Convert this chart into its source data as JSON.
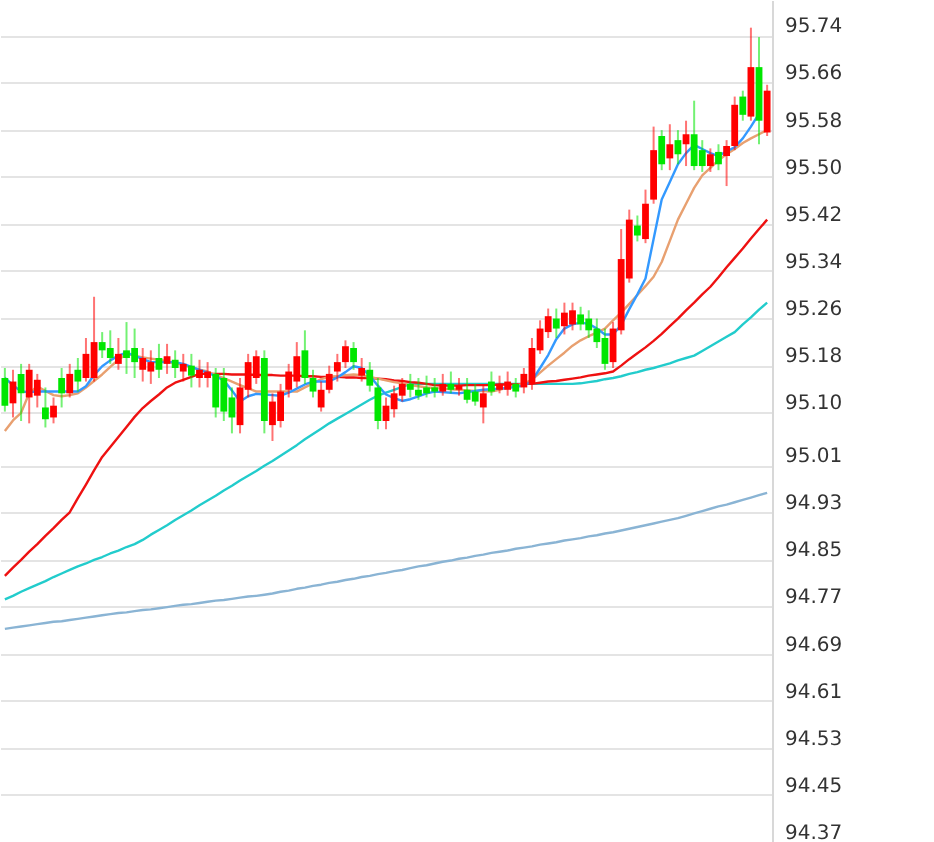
{
  "chart_data": {
    "type": "candlestick",
    "categories": [
      null,
      null,
      null,
      null,
      null,
      null,
      null,
      null,
      null,
      null,
      null,
      null,
      null,
      null,
      null,
      null,
      null,
      null,
      null,
      null,
      null,
      null,
      null,
      null,
      null,
      null,
      null,
      null,
      null,
      null,
      null,
      null,
      null,
      null,
      null,
      null,
      null,
      null,
      null,
      null,
      null,
      null,
      null,
      null,
      null,
      null,
      null,
      null,
      null,
      null,
      null,
      null,
      null,
      null,
      null,
      null,
      null,
      null,
      null,
      null,
      null,
      null,
      null,
      null,
      null,
      null,
      null,
      null,
      null,
      null,
      null,
      null,
      null,
      null,
      null,
      null,
      null,
      null,
      null,
      null,
      null,
      null,
      null,
      null,
      null,
      null,
      null,
      null,
      null,
      null,
      null,
      null,
      null,
      null,
      null
    ],
    "ohlc": [
      [
        95.158,
        95.175,
        95.101,
        95.111
      ],
      [
        95.115,
        95.172,
        95.091,
        95.152
      ],
      [
        95.165,
        95.182,
        95.085,
        95.132
      ],
      [
        95.125,
        95.182,
        95.081,
        95.172
      ],
      [
        95.128,
        95.165,
        95.108,
        95.155
      ],
      [
        95.108,
        95.142,
        95.074,
        95.088
      ],
      [
        95.091,
        95.125,
        95.081,
        95.111
      ],
      [
        95.158,
        95.175,
        95.108,
        95.132
      ],
      [
        95.132,
        95.182,
        95.125,
        95.165
      ],
      [
        95.172,
        95.192,
        95.135,
        95.152
      ],
      [
        95.158,
        95.226,
        95.152,
        95.199
      ],
      [
        95.158,
        95.296,
        95.152,
        95.219
      ],
      [
        95.219,
        95.236,
        95.192,
        95.205
      ],
      [
        95.209,
        95.239,
        95.182,
        95.192
      ],
      [
        95.182,
        95.226,
        95.172,
        95.199
      ],
      [
        95.205,
        95.253,
        95.165,
        95.192
      ],
      [
        95.209,
        95.242,
        95.158,
        95.185
      ],
      [
        95.172,
        95.209,
        95.152,
        95.192
      ],
      [
        95.169,
        95.205,
        95.148,
        95.185
      ],
      [
        95.192,
        95.216,
        95.158,
        95.172
      ],
      [
        95.182,
        95.216,
        95.165,
        95.195
      ],
      [
        95.189,
        95.205,
        95.158,
        95.175
      ],
      [
        95.169,
        95.199,
        95.152,
        95.182
      ],
      [
        95.179,
        95.199,
        95.142,
        95.162
      ],
      [
        95.158,
        95.189,
        95.142,
        95.172
      ],
      [
        95.158,
        95.185,
        95.142,
        95.169
      ],
      [
        95.165,
        95.175,
        95.091,
        95.108
      ],
      [
        95.158,
        95.175,
        95.085,
        95.101
      ],
      [
        95.125,
        95.142,
        95.064,
        95.091
      ],
      [
        95.078,
        95.158,
        95.064,
        95.142
      ],
      [
        95.138,
        95.199,
        95.125,
        95.185
      ],
      [
        95.158,
        95.205,
        95.148,
        95.195
      ],
      [
        95.192,
        95.205,
        95.064,
        95.085
      ],
      [
        95.078,
        95.132,
        95.051,
        95.118
      ],
      [
        95.085,
        95.148,
        95.074,
        95.135
      ],
      [
        95.138,
        95.182,
        95.125,
        95.169
      ],
      [
        95.152,
        95.219,
        95.142,
        95.195
      ],
      [
        95.205,
        95.239,
        95.148,
        95.158
      ],
      [
        95.158,
        95.172,
        95.125,
        95.135
      ],
      [
        95.108,
        95.152,
        95.101,
        95.138
      ],
      [
        95.138,
        95.179,
        95.132,
        95.165
      ],
      [
        95.169,
        95.199,
        95.152,
        95.185
      ],
      [
        95.185,
        95.222,
        95.175,
        95.212
      ],
      [
        95.209,
        95.219,
        95.172,
        95.185
      ],
      [
        95.162,
        95.192,
        95.152,
        95.175
      ],
      [
        95.172,
        95.185,
        95.135,
        95.145
      ],
      [
        95.142,
        95.158,
        95.071,
        95.085
      ],
      [
        95.085,
        95.125,
        95.071,
        95.111
      ],
      [
        95.105,
        95.145,
        95.091,
        95.132
      ],
      [
        95.128,
        95.158,
        95.118,
        95.148
      ],
      [
        95.148,
        95.165,
        95.125,
        95.138
      ],
      [
        95.138,
        95.158,
        95.121,
        95.128
      ],
      [
        95.142,
        95.162,
        95.125,
        95.132
      ],
      [
        95.142,
        95.158,
        95.125,
        95.135
      ],
      [
        95.135,
        95.165,
        95.128,
        95.148
      ],
      [
        95.148,
        95.169,
        95.132,
        95.138
      ],
      [
        95.138,
        95.158,
        95.128,
        95.145
      ],
      [
        95.138,
        95.158,
        95.115,
        95.121
      ],
      [
        95.135,
        95.148,
        95.111,
        95.118
      ],
      [
        95.108,
        95.145,
        95.081,
        95.132
      ],
      [
        95.152,
        95.169,
        95.128,
        95.135
      ],
      [
        95.138,
        95.162,
        95.132,
        95.148
      ],
      [
        95.138,
        95.169,
        95.128,
        95.152
      ],
      [
        95.148,
        95.158,
        95.125,
        95.135
      ],
      [
        95.142,
        95.175,
        95.132,
        95.165
      ],
      [
        95.148,
        95.226,
        95.138,
        95.209
      ],
      [
        95.205,
        95.256,
        95.199,
        95.242
      ],
      [
        95.236,
        95.276,
        95.226,
        95.263
      ],
      [
        95.259,
        95.276,
        95.226,
        95.242
      ],
      [
        95.246,
        95.286,
        95.232,
        95.269
      ],
      [
        95.249,
        95.286,
        95.239,
        95.273
      ],
      [
        95.266,
        95.279,
        95.239,
        95.249
      ],
      [
        95.259,
        95.273,
        95.226,
        95.239
      ],
      [
        95.242,
        95.259,
        95.209,
        95.219
      ],
      [
        95.226,
        95.242,
        95.172,
        95.182
      ],
      [
        95.185,
        95.253,
        95.175,
        95.242
      ],
      [
        95.239,
        95.411,
        95.232,
        95.36
      ],
      [
        95.327,
        95.444,
        95.32,
        95.427
      ],
      [
        95.417,
        95.434,
        95.39,
        95.4
      ],
      [
        95.394,
        95.478,
        95.387,
        95.454
      ],
      [
        95.461,
        95.585,
        95.454,
        95.545
      ],
      [
        95.569,
        95.579,
        95.511,
        95.521
      ],
      [
        95.531,
        95.589,
        95.511,
        95.555
      ],
      [
        95.562,
        95.579,
        95.521,
        95.538
      ],
      [
        95.555,
        95.595,
        95.518,
        95.572
      ],
      [
        95.572,
        95.629,
        95.511,
        95.518
      ],
      [
        95.545,
        95.562,
        95.508,
        95.518
      ],
      [
        95.518,
        95.548,
        95.508,
        95.538
      ],
      [
        95.542,
        95.555,
        95.511,
        95.521
      ],
      [
        95.535,
        95.562,
        95.484,
        95.552
      ],
      [
        95.552,
        95.636,
        95.545,
        95.622
      ],
      [
        95.636,
        95.646,
        95.595,
        95.605
      ],
      [
        95.602,
        95.753,
        95.595,
        95.686
      ],
      [
        95.686,
        95.737,
        95.555,
        95.595
      ],
      [
        95.575,
        95.656,
        95.569,
        95.646
      ]
    ],
    "colors": [
      "#00e600",
      "#ff0000",
      "#00e600",
      "#ff0000",
      "#ff0000",
      "#00e600",
      "#ff0000",
      "#00e600",
      "#ff0000",
      "#00e600",
      "#ff0000",
      "#ff0000",
      "#00e600",
      "#00e600",
      "#ff0000",
      "#00e600",
      "#00e600",
      "#ff0000",
      "#ff0000",
      "#00e600",
      "#ff0000",
      "#00e600",
      "#ff0000",
      "#00e600",
      "#ff0000",
      "#ff0000",
      "#00e600",
      "#00e600",
      "#00e600",
      "#ff0000",
      "#ff0000",
      "#ff0000",
      "#00e600",
      "#ff0000",
      "#ff0000",
      "#ff0000",
      "#ff0000",
      "#00e600",
      "#00e600",
      "#ff0000",
      "#ff0000",
      "#ff0000",
      "#ff0000",
      "#00e600",
      "#ff0000",
      "#00e600",
      "#00e600",
      "#ff0000",
      "#ff0000",
      "#ff0000",
      "#00e600",
      "#00e600",
      "#00e600",
      "#00e600",
      "#ff0000",
      "#00e600",
      "#ff0000",
      "#00e600",
      "#00e600",
      "#ff0000",
      "#00e600",
      "#ff0000",
      "#ff0000",
      "#00e600",
      "#ff0000",
      "#ff0000",
      "#ff0000",
      "#ff0000",
      "#00e600",
      "#ff0000",
      "#ff0000",
      "#00e600",
      "#00e600",
      "#00e600",
      "#00e600",
      "#ff0000",
      "#ff0000",
      "#ff0000",
      "#00e600",
      "#ff0000",
      "#ff0000",
      "#00e600",
      "#ff0000",
      "#00e600",
      "#ff0000",
      "#00e600",
      "#00e600",
      "#ff0000",
      "#00e600",
      "#ff0000",
      "#ff0000",
      "#00e600",
      "#ff0000",
      "#00e600",
      "#ff0000"
    ],
    "series": [
      {
        "type": "line",
        "color": "#8ab4d4",
        "values": [
          94.732,
          94.734,
          94.736,
          94.738,
          94.74,
          94.742,
          94.744,
          94.745,
          94.747,
          94.749,
          94.751,
          94.753,
          94.755,
          94.757,
          94.759,
          94.76,
          94.762,
          94.764,
          94.765,
          94.767,
          94.769,
          94.771,
          94.773,
          94.774,
          94.776,
          94.778,
          94.78,
          94.781,
          94.783,
          94.785,
          94.787,
          94.788,
          94.79,
          94.792,
          94.795,
          94.797,
          94.8,
          94.802,
          94.805,
          94.807,
          94.81,
          94.812,
          94.815,
          94.817,
          94.82,
          94.822,
          94.825,
          94.827,
          94.83,
          94.832,
          94.835,
          94.838,
          94.84,
          94.843,
          94.846,
          94.848,
          94.851,
          94.853,
          94.856,
          94.858,
          94.861,
          94.863,
          94.865,
          94.868,
          94.87,
          94.872,
          94.875,
          94.877,
          94.879,
          94.882,
          94.884,
          94.886,
          94.889,
          94.891,
          94.894,
          94.896,
          94.899,
          94.902,
          94.905,
          94.908,
          94.911,
          94.914,
          94.917,
          94.92,
          94.924,
          94.928,
          94.932,
          94.936,
          94.94,
          94.943,
          94.947,
          94.951,
          94.955,
          94.959,
          94.963
        ]
      },
      {
        "type": "line",
        "color": "#22cccc",
        "values": [
          94.782,
          94.788,
          94.795,
          94.801,
          94.807,
          94.813,
          94.82,
          94.826,
          94.832,
          94.838,
          94.843,
          94.849,
          94.854,
          94.86,
          94.865,
          94.871,
          94.876,
          94.883,
          94.892,
          94.9,
          94.908,
          94.917,
          94.925,
          94.933,
          94.942,
          94.95,
          94.958,
          94.967,
          94.975,
          94.984,
          94.992,
          95.0,
          95.009,
          95.017,
          95.026,
          95.035,
          95.044,
          95.054,
          95.063,
          95.072,
          95.081,
          95.089,
          95.097,
          95.105,
          95.113,
          95.121,
          95.128,
          95.133,
          95.138,
          95.143,
          95.148,
          95.148,
          95.148,
          95.148,
          95.148,
          95.148,
          95.148,
          95.148,
          95.148,
          95.148,
          95.148,
          95.148,
          95.148,
          95.148,
          95.148,
          95.148,
          95.148,
          95.148,
          95.148,
          95.148,
          95.148,
          95.149,
          95.151,
          95.153,
          95.156,
          95.158,
          95.161,
          95.165,
          95.168,
          95.172,
          95.175,
          95.179,
          95.183,
          95.188,
          95.192,
          95.196,
          95.204,
          95.212,
          95.22,
          95.228,
          95.236,
          95.249,
          95.261,
          95.274,
          95.286
        ]
      },
      {
        "type": "line",
        "color": "#ee1111",
        "values": [
          94.822,
          94.836,
          94.849,
          94.863,
          94.876,
          94.89,
          94.903,
          94.917,
          94.93,
          94.954,
          94.977,
          95.001,
          95.024,
          95.041,
          95.058,
          95.075,
          95.092,
          95.107,
          95.119,
          95.13,
          95.142,
          95.15,
          95.155,
          95.16,
          95.165,
          95.165,
          95.165,
          95.165,
          95.164,
          95.164,
          95.164,
          95.163,
          95.163,
          95.163,
          95.162,
          95.162,
          95.162,
          95.161,
          95.161,
          95.16,
          95.16,
          95.16,
          95.159,
          95.159,
          95.158,
          95.158,
          95.157,
          95.156,
          95.154,
          95.153,
          95.151,
          95.15,
          95.148,
          95.146,
          95.145,
          95.145,
          95.145,
          95.146,
          95.146,
          95.146,
          95.146,
          95.147,
          95.147,
          95.147,
          95.148,
          95.148,
          95.15,
          95.152,
          95.153,
          95.155,
          95.157,
          95.159,
          95.162,
          95.164,
          95.166,
          95.169,
          95.179,
          95.19,
          95.2,
          95.21,
          95.221,
          95.233,
          95.246,
          95.259,
          95.273,
          95.286,
          95.3,
          95.313,
          95.329,
          95.346,
          95.362,
          95.378,
          95.395,
          95.411,
          95.427
        ]
      },
      {
        "type": "line",
        "color": "#e8a070",
        "values": [
          95.068,
          95.086,
          95.099,
          95.132,
          95.144,
          95.136,
          95.129,
          95.127,
          95.129,
          95.132,
          95.142,
          95.153,
          95.164,
          95.177,
          95.189,
          95.199,
          95.196,
          95.193,
          95.191,
          95.189,
          95.186,
          95.183,
          95.18,
          95.176,
          95.172,
          95.169,
          95.163,
          95.158,
          95.152,
          95.146,
          95.141,
          95.135,
          95.135,
          95.135,
          95.135,
          95.135,
          95.135,
          95.142,
          95.149,
          95.156,
          95.16,
          95.161,
          95.163,
          95.164,
          95.163,
          95.16,
          95.157,
          95.154,
          95.151,
          95.149,
          95.146,
          95.144,
          95.142,
          95.141,
          95.14,
          95.139,
          95.138,
          95.137,
          95.136,
          95.136,
          95.135,
          95.138,
          95.142,
          95.145,
          95.149,
          95.155,
          95.167,
          95.179,
          95.19,
          95.201,
          95.213,
          95.222,
          95.229,
          95.235,
          95.242,
          95.256,
          95.269,
          95.284,
          95.299,
          95.314,
          95.33,
          95.355,
          95.391,
          95.427,
          95.454,
          95.481,
          95.502,
          95.515,
          95.528,
          95.538,
          95.547,
          95.557,
          95.565,
          95.572,
          95.579
        ]
      },
      {
        "type": "line",
        "color": "#3399ff",
        "values": [
          95.158,
          95.146,
          95.135,
          95.134,
          95.135,
          95.135,
          95.135,
          95.135,
          95.135,
          95.135,
          95.144,
          95.163,
          95.178,
          95.188,
          95.196,
          95.201,
          95.196,
          95.19,
          95.185,
          95.185,
          95.185,
          95.185,
          95.182,
          95.177,
          95.172,
          95.167,
          95.161,
          95.154,
          95.137,
          95.118,
          95.127,
          95.131,
          95.13,
          95.129,
          95.128,
          95.133,
          95.14,
          95.147,
          95.152,
          95.152,
          95.152,
          95.159,
          95.168,
          95.178,
          95.175,
          95.162,
          95.145,
          95.13,
          95.124,
          95.119,
          95.122,
          95.127,
          95.132,
          95.135,
          95.134,
          95.133,
          95.132,
          95.134,
          95.136,
          95.138,
          95.139,
          95.14,
          95.141,
          95.143,
          95.145,
          95.153,
          95.175,
          95.197,
          95.224,
          95.242,
          95.249,
          95.252,
          95.25,
          95.242,
          95.232,
          95.232,
          95.248,
          95.275,
          95.3,
          95.327,
          95.394,
          95.461,
          95.491,
          95.521,
          95.54,
          95.554,
          95.547,
          95.54,
          95.535,
          95.543,
          95.55,
          95.565,
          95.585,
          95.607,
          null
        ]
      }
    ],
    "ylim": [
      94.37,
      95.8
    ],
    "yticks": [
      94.37,
      94.45,
      94.53,
      94.61,
      94.69,
      94.77,
      94.85,
      94.93,
      95.01,
      {
        "value": 95.1,
        "label": "95.10"
      },
      95.18,
      95.26,
      95.34,
      95.42,
      {
        "value": 95.5,
        "label": "95.50"
      },
      95.58,
      95.66,
      95.74
    ],
    "grid": "y",
    "tick_labels": "y"
  }
}
